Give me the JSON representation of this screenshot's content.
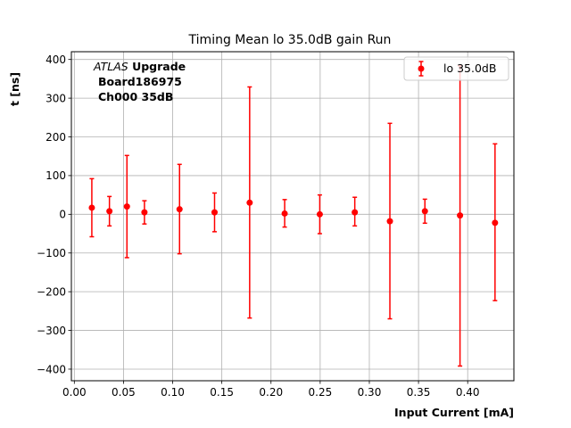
{
  "chart_data": {
    "type": "scatter",
    "title": "Timing Mean lo 35.0dB gain Run",
    "xlabel": "Input Current [mA]",
    "ylabel": "t [ns]",
    "xlim": [
      -0.003,
      0.447
    ],
    "ylim": [
      -430,
      420
    ],
    "x_ticks": [
      0.0,
      0.05,
      0.1,
      0.15,
      0.2,
      0.25,
      0.3,
      0.35,
      0.4
    ],
    "x_tick_labels": [
      "0.00",
      "0.05",
      "0.10",
      "0.15",
      "0.20",
      "0.25",
      "0.30",
      "0.35",
      "0.40"
    ],
    "y_ticks": [
      -400,
      -300,
      -200,
      -100,
      0,
      100,
      200,
      300,
      400
    ],
    "y_tick_labels": [
      "−400",
      "−300",
      "−200",
      "−100",
      "0",
      "100",
      "200",
      "300",
      "400"
    ],
    "grid": true,
    "legend_position": "top-right",
    "annotation": {
      "line1_italic": "ATLAS",
      "line1_bold": " Upgrade",
      "line2": "Board186975",
      "line3": "Ch000 35dB"
    },
    "series": [
      {
        "name": "lo 35.0dB",
        "color": "#ff0000",
        "x": [
          0.0178,
          0.0357,
          0.0535,
          0.0713,
          0.107,
          0.1426,
          0.1783,
          0.2139,
          0.2496,
          0.2852,
          0.3209,
          0.3565,
          0.3922,
          0.4278
        ],
        "y": [
          17,
          8,
          20,
          5,
          13,
          5,
          30,
          2,
          0,
          5,
          -18,
          8,
          -3,
          -22
        ],
        "y_err_low": [
          -58,
          -30,
          -112,
          -25,
          -102,
          -45,
          -268,
          -33,
          -50,
          -30,
          -270,
          -23,
          -392,
          -223
        ],
        "y_err_high": [
          92,
          46,
          152,
          35,
          129,
          55,
          329,
          38,
          50,
          44,
          235,
          39,
          384,
          182
        ]
      }
    ]
  }
}
